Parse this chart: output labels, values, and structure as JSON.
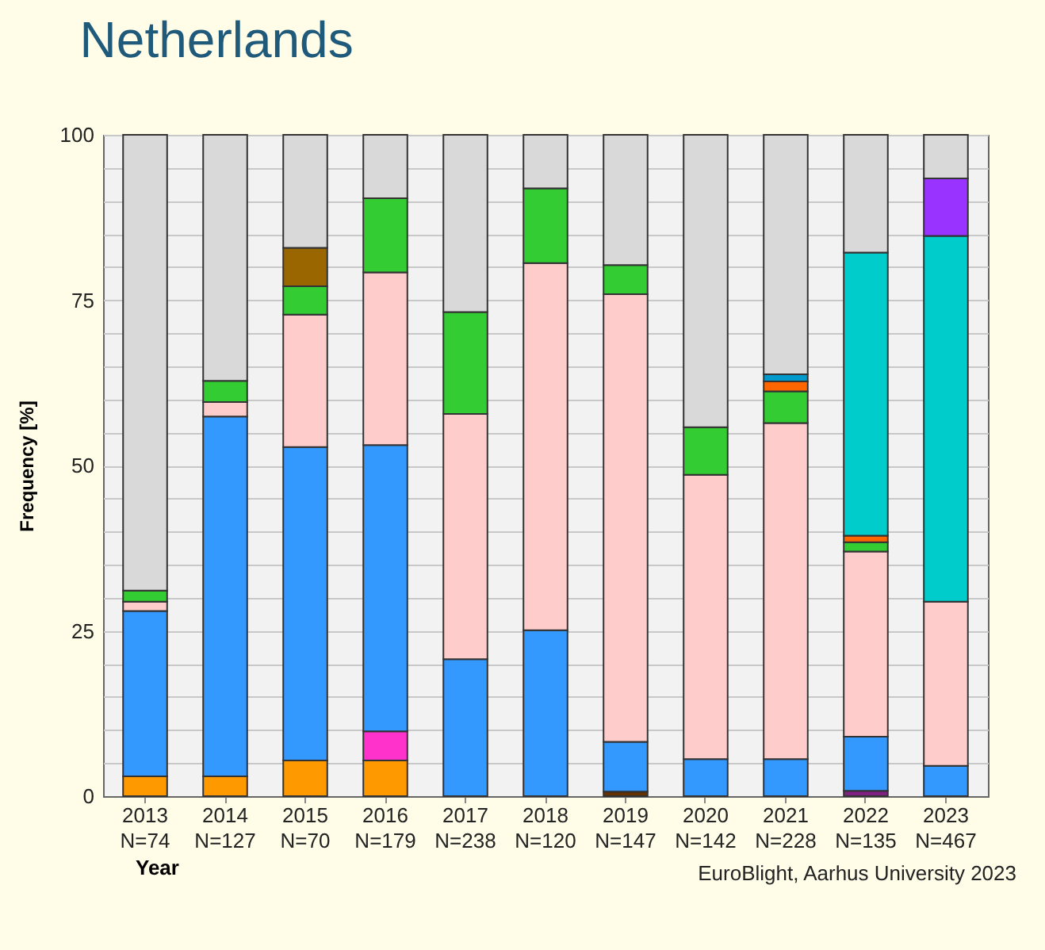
{
  "chart_data": {
    "type": "bar",
    "stacked": true,
    "title": "Netherlands",
    "xlabel": "Year",
    "ylabel": "Frequency [%]",
    "categories": [
      "2013\nN=74",
      "2014\nN=127",
      "2015\nN=70",
      "2016\nN=179",
      "2017\nN=238",
      "2018\nN=120",
      "2019\nN=147",
      "2020\nN=142",
      "2021\nN=228",
      "2022\nN=135",
      "2023\nN=467"
    ],
    "series": [
      {
        "color": "#ff9900",
        "values": [
          3,
          3,
          5.4,
          5.4,
          null,
          null,
          null,
          null,
          null,
          null,
          null
        ]
      },
      {
        "color": "#ff33cc",
        "values": [
          null,
          null,
          null,
          4.4,
          null,
          null,
          null,
          null,
          null,
          null,
          null
        ]
      },
      {
        "color": "#663300",
        "values": [
          null,
          null,
          null,
          null,
          null,
          null,
          0.7,
          null,
          null,
          null,
          null
        ]
      },
      {
        "color": "#802080",
        "values": [
          null,
          null,
          null,
          null,
          null,
          null,
          null,
          null,
          null,
          0.8,
          null
        ]
      },
      {
        "color": "#3399ff",
        "values": [
          25,
          54.4,
          47.4,
          43.3,
          20.7,
          25.1,
          7.5,
          5.6,
          5.6,
          8.2,
          4.6
        ]
      },
      {
        "color": "#ffcccc",
        "values": [
          1.4,
          2.2,
          20,
          26.1,
          37.1,
          55.5,
          67.7,
          43,
          50.8,
          28,
          24.8
        ]
      },
      {
        "color": "#33cc33",
        "values": [
          1.7,
          3.2,
          4.3,
          11.2,
          15.4,
          11.3,
          4.4,
          7.2,
          4.8,
          1.4,
          null
        ]
      },
      {
        "color": "#ff6600",
        "values": [
          null,
          null,
          null,
          null,
          null,
          null,
          null,
          null,
          1.5,
          1,
          null
        ]
      },
      {
        "color": "#0099cc",
        "values": [
          null,
          null,
          null,
          null,
          null,
          null,
          null,
          null,
          1.1,
          null,
          null
        ]
      },
      {
        "color": "#00cccc",
        "values": [
          null,
          null,
          null,
          null,
          null,
          null,
          null,
          null,
          null,
          42.8,
          55.3
        ]
      },
      {
        "color": "#996600",
        "values": [
          null,
          null,
          5.8,
          null,
          null,
          null,
          null,
          null,
          null,
          null,
          null
        ]
      },
      {
        "color": "#9933ff",
        "values": [
          null,
          null,
          null,
          null,
          null,
          null,
          null,
          null,
          null,
          null,
          8.7
        ]
      },
      {
        "color": "#d9d9d9",
        "values": [
          68.9,
          37.2,
          17.1,
          9.6,
          26.8,
          8.1,
          19.7,
          44.2,
          36.2,
          17.8,
          6.6
        ]
      }
    ],
    "ylim": [
      0,
      100
    ],
    "yticks": [
      0,
      {
        "value": 5,
        "label": null
      },
      {
        "value": 10,
        "label": null
      },
      {
        "value": 15,
        "label": null
      },
      {
        "value": 20,
        "label": null
      },
      25,
      {
        "value": 30,
        "label": null
      },
      {
        "value": 35,
        "label": null
      },
      {
        "value": 40,
        "label": null
      },
      {
        "value": 45,
        "label": null
      },
      50,
      {
        "value": 55,
        "label": null
      },
      {
        "value": 60,
        "label": null
      },
      {
        "value": 65,
        "label": null
      },
      {
        "value": 70,
        "label": null
      },
      75,
      {
        "value": 80,
        "label": null
      },
      {
        "value": 85,
        "label": null
      },
      {
        "value": 90,
        "label": null
      },
      {
        "value": 95,
        "label": null
      },
      100
    ],
    "grid": "y",
    "annotations": [
      "EuroBlight, Aarhus University 2023"
    ]
  }
}
